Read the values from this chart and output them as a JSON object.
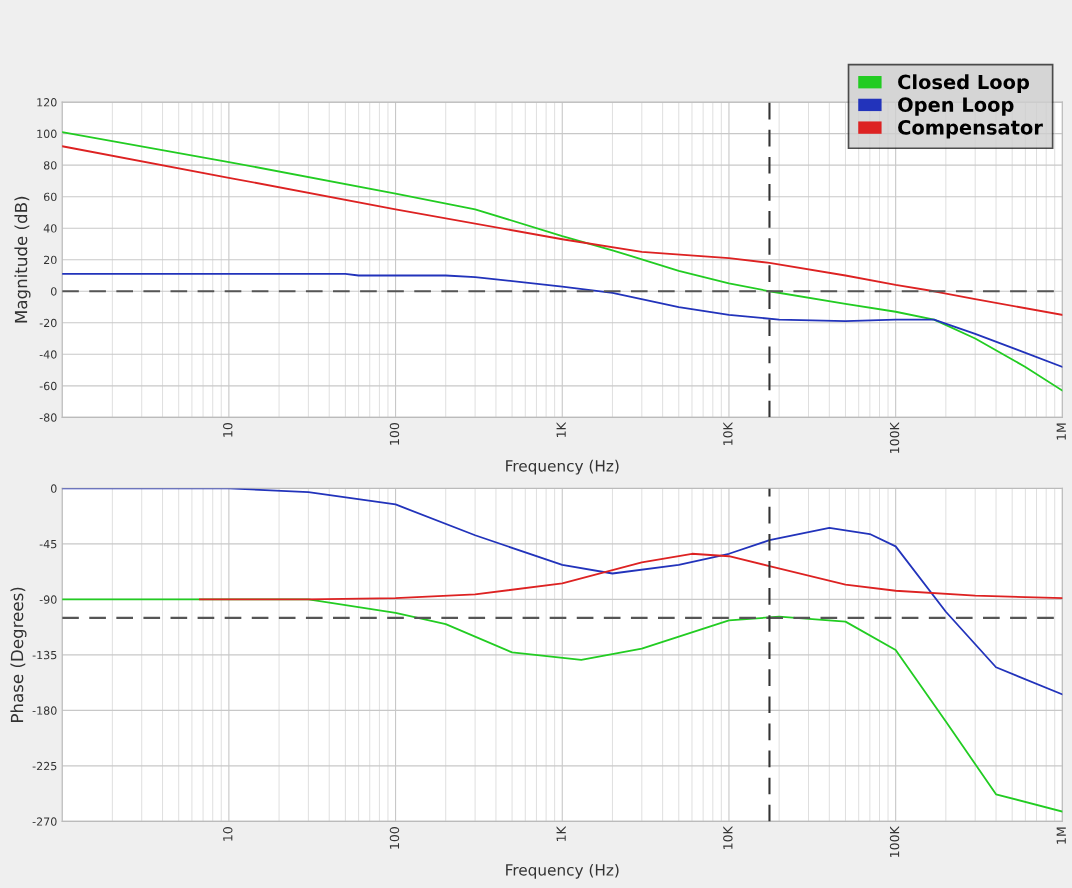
{
  "chart_data": [
    {
      "type": "line",
      "xlabel": "Frequency (Hz)",
      "ylabel": "Magnitude (dB)",
      "log": "x",
      "grid": true,
      "legend": "top right",
      "xlim": [
        1,
        1000000
      ],
      "xticks": [
        {
          "value": 1,
          "label": null
        },
        10,
        100,
        {
          "value": 1000,
          "label": "1K"
        },
        {
          "value": 10000,
          "label": "10K"
        },
        {
          "value": 100000,
          "label": "100K"
        },
        {
          "value": 1000000,
          "label": "1M"
        }
      ],
      "ylim": [
        -80,
        120
      ],
      "yticks": [
        -80,
        -60,
        -40,
        -20,
        0,
        20,
        40,
        60,
        80,
        100,
        120
      ],
      "ref_lines": [
        {
          "axis": "y",
          "value": 0,
          "line_style": "dashed",
          "color": "#555555"
        },
        {
          "axis": "x",
          "value": 17500,
          "line_style": "dashed",
          "color": "#333333"
        }
      ],
      "series": [
        {
          "name": "Closed Loop",
          "color": "#22cc22",
          "x": [
            1,
            10,
            100,
            300,
            1000,
            2000,
            5000,
            10000,
            17500,
            50000,
            100000,
            170000,
            300000,
            600000,
            1000000
          ],
          "values": [
            101,
            82,
            62,
            52,
            35,
            26,
            13,
            5,
            0,
            -8,
            -13,
            -18,
            -30,
            -48,
            -63
          ]
        },
        {
          "name": "Open Loop",
          "color": "#2233bb",
          "x": [
            1,
            50,
            60,
            200,
            300,
            1000,
            2000,
            5000,
            10000,
            20000,
            50000,
            100000,
            170000,
            300000,
            1000000
          ],
          "values": [
            11,
            11,
            10,
            10,
            9,
            3,
            -1,
            -10,
            -15,
            -18,
            -19,
            -18,
            -18,
            -27,
            -48
          ]
        },
        {
          "name": "Compensator",
          "color": "#dd2222",
          "x": [
            1,
            10,
            100,
            1000,
            3000,
            10000,
            17500,
            50000,
            100000,
            170000,
            300000,
            1000000
          ],
          "values": [
            92,
            72,
            52,
            33,
            25,
            21,
            18,
            10,
            4,
            0,
            -5,
            -15
          ]
        }
      ]
    },
    {
      "type": "line",
      "xlabel": "Frequency (Hz)",
      "ylabel": "Phase (Degrees)",
      "log": "x",
      "grid": true,
      "xlim": [
        1,
        1000000
      ],
      "xticks": [
        {
          "value": 1,
          "label": null
        },
        10,
        100,
        {
          "value": 1000,
          "label": "1K"
        },
        {
          "value": 10000,
          "label": "10K"
        },
        {
          "value": 100000,
          "label": "100K"
        },
        {
          "value": 1000000,
          "label": "1M"
        }
      ],
      "ylim": [
        -270,
        0
      ],
      "yticks": [
        -270,
        -225,
        -180,
        -135,
        -90,
        -45,
        0
      ],
      "ref_lines": [
        {
          "axis": "y",
          "value": -105,
          "line_style": "dashed",
          "color": "#555555"
        },
        {
          "axis": "x",
          "value": 17500,
          "line_style": "dashed",
          "color": "#333333"
        }
      ],
      "series": [
        {
          "color": "#22cc22",
          "x": [
            1,
            30,
            100,
            200,
            500,
            1300,
            3000,
            10000,
            20000,
            50000,
            100000,
            200000,
            400000,
            1000000
          ],
          "values": [
            -90,
            -90,
            -101,
            -110,
            -133,
            -139,
            -130,
            -107,
            -104,
            -108,
            -131,
            -189,
            -248,
            -262
          ]
        },
        {
          "color": "#2233bb",
          "x": [
            1,
            10,
            30,
            100,
            300,
            1000,
            2000,
            5000,
            10000,
            17500,
            40000,
            70000,
            100000,
            200000,
            400000,
            1000000
          ],
          "values": [
            0,
            0,
            -3,
            -13,
            -38,
            -62,
            -69,
            -62,
            -53,
            -42,
            -32,
            -37,
            -47,
            -100,
            -145,
            -167
          ]
        },
        {
          "color": "#dd2222",
          "x": [
            6.7,
            30,
            100,
            300,
            1000,
            3000,
            6000,
            10000,
            17500,
            50000,
            100000,
            300000,
            1000000
          ],
          "values": [
            -90,
            -90,
            -89,
            -86,
            -77,
            -60,
            -53,
            -55,
            -63,
            -78,
            -83,
            -87,
            -89
          ]
        }
      ]
    }
  ]
}
